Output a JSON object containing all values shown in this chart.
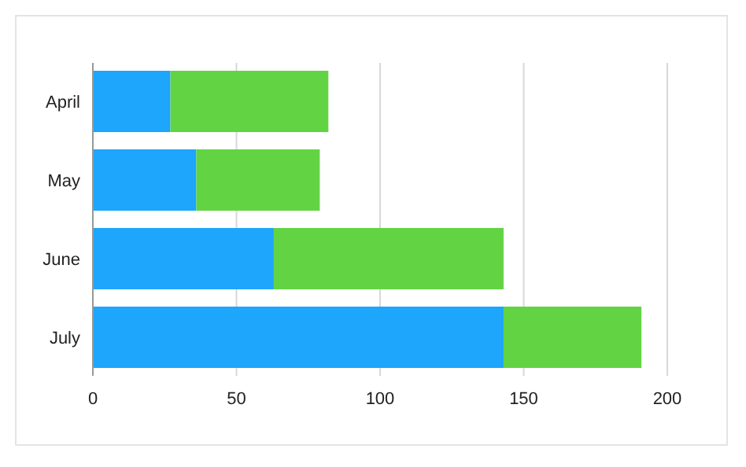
{
  "chart_data": {
    "type": "bar",
    "orientation": "horizontal",
    "stacked": true,
    "categories": [
      "April",
      "May",
      "June",
      "July"
    ],
    "series": [
      {
        "color": "#1ea5fc",
        "values": [
          27,
          36,
          63,
          143
        ]
      },
      {
        "color": "#62d444",
        "values": [
          55,
          43,
          80,
          48
        ]
      }
    ],
    "xlim": [
      0,
      200
    ],
    "xticks": [
      0,
      50,
      100,
      150,
      200
    ],
    "grid": "x"
  }
}
